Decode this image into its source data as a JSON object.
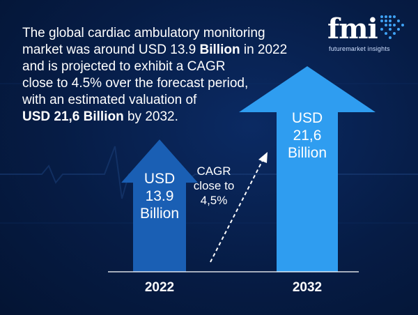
{
  "headline": {
    "line1": "The global cardiac ambulatory monitoring",
    "line2_pre": "market was around USD 13.9 ",
    "line2_bold": "Billion",
    "line2_post": " in 2022",
    "line3": "and is projected to exhibit a CAGR",
    "line4": "close to 4.5% over the forecast period,",
    "line5": "with an estimated valuation of",
    "line6_bold": "USD 21,6 Billion",
    "line6_post": " by 2032."
  },
  "logo": {
    "wordmark": "fmi",
    "tagline": "futuremarket insights"
  },
  "annotation": {
    "cagr_line1": "CAGR",
    "cagr_line2": "close to",
    "cagr_line3": "4,5%"
  },
  "chart_data": {
    "type": "bar",
    "categories": [
      "2022",
      "2032"
    ],
    "values": [
      13.9,
      21.6
    ],
    "value_labels": [
      [
        "USD",
        "13.9",
        "Billion"
      ],
      [
        "USD",
        "21,6",
        "Billion"
      ]
    ],
    "ylim": [
      0,
      21.6
    ],
    "grid": false,
    "colors": [
      "#1a5fb4",
      "#2f9df0"
    ]
  },
  "colors": {
    "background": "#061c45",
    "text": "#ffffff",
    "bar_2022": "#1a5fb4",
    "bar_2032": "#2f9df0",
    "baseline": "#ffffff"
  }
}
